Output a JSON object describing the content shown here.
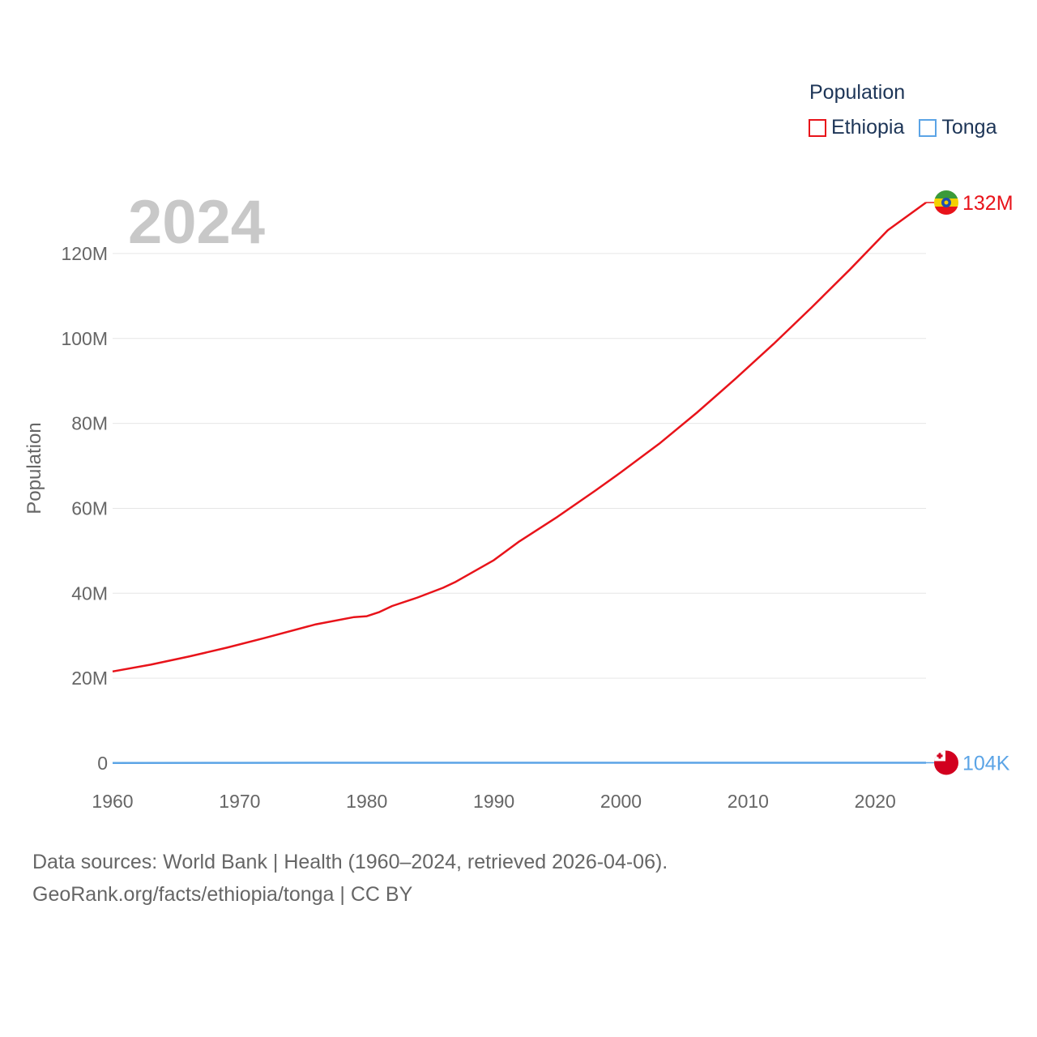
{
  "legend": {
    "title": "Population",
    "items": [
      {
        "label": "Ethiopia",
        "color": "#e8131a"
      },
      {
        "label": "Tonga",
        "color": "#5ba4e6"
      }
    ]
  },
  "current_year": "2024",
  "footer": {
    "line1": "Data sources: World Bank | Health (1960–2024, retrieved 2026-04-06).",
    "line2": "GeoRank.org/facts/ethiopia/tonga | CC BY"
  },
  "chart_data": {
    "type": "line",
    "title": "",
    "xlabel": "",
    "ylabel": "Population",
    "xlim": [
      1960,
      2024
    ],
    "ylim": [
      0,
      132000000
    ],
    "x_ticks": [
      1960,
      1970,
      1980,
      1990,
      2000,
      2010,
      2020
    ],
    "x_tick_labels": [
      "1960",
      "1970",
      "1980",
      "1990",
      "2000",
      "2010",
      "2020"
    ],
    "y_ticks": [
      0,
      20000000,
      40000000,
      60000000,
      80000000,
      100000000,
      120000000
    ],
    "y_tick_labels": [
      "0",
      "20M",
      "40M",
      "60M",
      "80M",
      "100M",
      "120M"
    ],
    "series": [
      {
        "name": "Ethiopia",
        "color": "#e8131a",
        "end_label": "132M",
        "flag": "ethiopia-flag-icon",
        "x": [
          1960,
          1963,
          1966,
          1969,
          1972,
          1976,
          1979,
          1980,
          1981,
          1982,
          1984,
          1986,
          1987,
          1990,
          1992,
          1995,
          1998,
          2000,
          2003,
          2006,
          2009,
          2012,
          2015,
          2018,
          2021,
          2024
        ],
        "values": [
          21600000,
          23200000,
          25100000,
          27200000,
          29500000,
          32700000,
          34400000,
          34600000,
          35600000,
          37000000,
          39000000,
          41300000,
          42700000,
          47800000,
          52200000,
          58000000,
          64200000,
          68500000,
          75200000,
          82600000,
          90500000,
          98700000,
          107300000,
          116200000,
          125500000,
          132000000
        ]
      },
      {
        "name": "Tonga",
        "color": "#5ba4e6",
        "end_label": "104K",
        "flag": "tonga-flag-icon",
        "x": [
          1960,
          1970,
          1980,
          1990,
          2000,
          2010,
          2020,
          2024
        ],
        "values": [
          61900,
          83200,
          92800,
          95200,
          100600,
          104400,
          104500,
          104200
        ]
      }
    ]
  }
}
